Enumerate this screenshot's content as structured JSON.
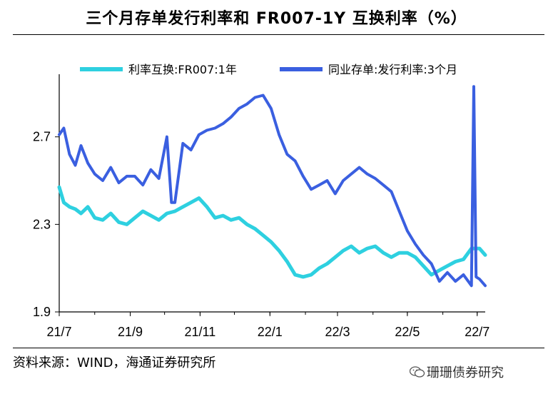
{
  "title": "三个月存单发行利率和 FR007-1Y 互换利率（%）",
  "source": "资料来源：WIND，海通证券研究所",
  "watermark": "珊珊债券研究",
  "colors": {
    "swap": "#2ED0E0",
    "ncd": "#3A5FE0",
    "axis": "#000000"
  },
  "chart_data": {
    "type": "line",
    "title": "三个月存单发行利率和 FR007-1Y 互换利率（%）",
    "xlabel": "",
    "ylabel": "",
    "x_tick_labels": [
      "21/7",
      "21/9",
      "21/11",
      "22/1",
      "22/3",
      "22/5",
      "22/7"
    ],
    "y_ticks": [
      1.9,
      2.3,
      2.7
    ],
    "ylim": [
      1.9,
      2.96
    ],
    "legend_position": "top",
    "series": [
      {
        "name": "利率互换:FR007:1年",
        "color": "#2ED0E0",
        "x": [
          "2021-07-01",
          "2021-07-05",
          "2021-07-10",
          "2021-07-15",
          "2021-07-20",
          "2021-07-26",
          "2021-08-01",
          "2021-08-08",
          "2021-08-15",
          "2021-08-22",
          "2021-08-29",
          "2021-09-05",
          "2021-09-12",
          "2021-09-19",
          "2021-09-26",
          "2021-10-03",
          "2021-10-10",
          "2021-10-17",
          "2021-10-24",
          "2021-10-31",
          "2021-11-07",
          "2021-11-14",
          "2021-11-21",
          "2021-11-28",
          "2021-12-05",
          "2021-12-12",
          "2021-12-19",
          "2021-12-26",
          "2022-01-02",
          "2022-01-09",
          "2022-01-16",
          "2022-01-23",
          "2022-01-30",
          "2022-02-06",
          "2022-02-13",
          "2022-02-20",
          "2022-02-27",
          "2022-03-06",
          "2022-03-13",
          "2022-03-20",
          "2022-03-27",
          "2022-04-03",
          "2022-04-10",
          "2022-04-17",
          "2022-04-24",
          "2022-05-01",
          "2022-05-08",
          "2022-05-15",
          "2022-05-22",
          "2022-05-29",
          "2022-06-05",
          "2022-06-12",
          "2022-06-19",
          "2022-06-26",
          "2022-07-03",
          "2022-07-08"
        ],
        "values": [
          2.47,
          2.4,
          2.38,
          2.37,
          2.35,
          2.38,
          2.33,
          2.32,
          2.35,
          2.31,
          2.3,
          2.33,
          2.36,
          2.34,
          2.32,
          2.35,
          2.36,
          2.38,
          2.4,
          2.42,
          2.38,
          2.33,
          2.34,
          2.32,
          2.33,
          2.3,
          2.28,
          2.25,
          2.22,
          2.18,
          2.13,
          2.07,
          2.06,
          2.07,
          2.1,
          2.12,
          2.15,
          2.18,
          2.2,
          2.17,
          2.19,
          2.2,
          2.17,
          2.15,
          2.17,
          2.17,
          2.15,
          2.11,
          2.07,
          2.09,
          2.11,
          2.13,
          2.14,
          2.19,
          2.19,
          2.16
        ]
      },
      {
        "name": "同业存单:发行利率:3个月",
        "color": "#3A5FE0",
        "x": [
          "2021-07-01",
          "2021-07-05",
          "2021-07-10",
          "2021-07-15",
          "2021-07-20",
          "2021-07-26",
          "2021-08-01",
          "2021-08-08",
          "2021-08-15",
          "2021-08-22",
          "2021-08-29",
          "2021-09-05",
          "2021-09-12",
          "2021-09-19",
          "2021-09-26",
          "2021-10-03",
          "2021-10-07",
          "2021-10-10",
          "2021-10-17",
          "2021-10-24",
          "2021-10-31",
          "2021-11-07",
          "2021-11-14",
          "2021-11-21",
          "2021-11-28",
          "2021-12-05",
          "2021-12-12",
          "2021-12-19",
          "2021-12-26",
          "2022-01-02",
          "2022-01-09",
          "2022-01-16",
          "2022-01-23",
          "2022-01-30",
          "2022-02-06",
          "2022-02-13",
          "2022-02-20",
          "2022-02-27",
          "2022-03-06",
          "2022-03-13",
          "2022-03-20",
          "2022-03-27",
          "2022-04-03",
          "2022-04-10",
          "2022-04-17",
          "2022-04-24",
          "2022-05-01",
          "2022-05-08",
          "2022-05-15",
          "2022-05-22",
          "2022-05-29",
          "2022-06-05",
          "2022-06-12",
          "2022-06-19",
          "2022-06-26",
          "2022-06-28",
          "2022-06-30",
          "2022-07-03",
          "2022-07-08"
        ],
        "values": [
          2.71,
          2.74,
          2.62,
          2.57,
          2.66,
          2.58,
          2.53,
          2.5,
          2.56,
          2.49,
          2.52,
          2.52,
          2.48,
          2.55,
          2.51,
          2.7,
          2.4,
          2.4,
          2.67,
          2.64,
          2.71,
          2.73,
          2.74,
          2.76,
          2.79,
          2.83,
          2.85,
          2.88,
          2.89,
          2.83,
          2.71,
          2.62,
          2.59,
          2.52,
          2.46,
          2.48,
          2.5,
          2.44,
          2.5,
          2.53,
          2.56,
          2.53,
          2.51,
          2.48,
          2.45,
          2.36,
          2.27,
          2.21,
          2.16,
          2.12,
          2.04,
          2.08,
          2.04,
          2.07,
          2.02,
          2.93,
          2.06,
          2.05,
          2.02
        ]
      }
    ]
  }
}
